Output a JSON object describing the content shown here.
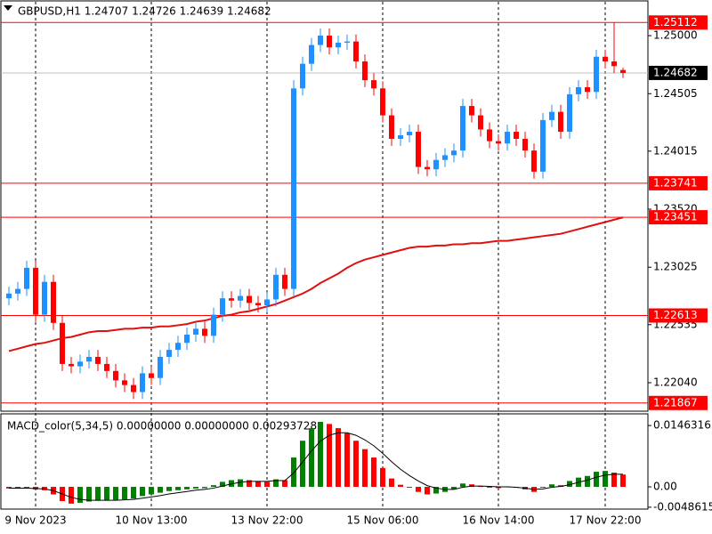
{
  "chart_data": [
    {
      "type": "candlestick",
      "title": "GBPUSD,H1  1.24707 1.24726 1.24639 1.24682",
      "categories": [
        null,
        null,
        null,
        "9 Nov 2023",
        null,
        null,
        null,
        null,
        null,
        null,
        null,
        null,
        null,
        null,
        null,
        null,
        "10 Nov 13:00",
        null,
        null,
        null,
        null,
        null,
        null,
        null,
        null,
        null,
        null,
        null,
        null,
        "13 Nov 22:00",
        null,
        null,
        null,
        null,
        null,
        null,
        null,
        null,
        null,
        null,
        null,
        null,
        "15 Nov 06:00",
        null,
        null,
        null,
        null,
        null,
        null,
        null,
        null,
        null,
        null,
        null,
        null,
        "16 Nov 14:00",
        null,
        null,
        null,
        null,
        null,
        null,
        null,
        null,
        null,
        null,
        null,
        "17 Nov 22:00",
        null,
        null
      ],
      "open": [
        1.2276,
        1.228,
        1.2284,
        1.2302,
        1.2262,
        1.229,
        1.2255,
        1.222,
        1.2218,
        1.2222,
        1.2226,
        1.222,
        1.2214,
        1.2206,
        1.2202,
        1.2196,
        1.2212,
        1.2208,
        1.2226,
        1.2232,
        1.2238,
        1.2245,
        1.225,
        1.2244,
        1.2262,
        1.2276,
        1.2274,
        1.2278,
        1.2272,
        1.227,
        1.2275,
        1.2296,
        1.2284,
        1.2455,
        1.2476,
        1.2492,
        1.25,
        1.249,
        1.2494,
        1.2495,
        1.2478,
        1.2462,
        1.2455,
        1.2432,
        1.2412,
        1.2415,
        1.2418,
        1.2388,
        1.2386,
        1.2394,
        1.2398,
        1.2402,
        1.244,
        1.2432,
        1.242,
        1.241,
        1.2408,
        1.2418,
        1.2412,
        1.2402,
        1.2384,
        1.2428,
        1.2435,
        1.2418,
        1.245,
        1.2456,
        1.2452,
        1.2482,
        1.2478,
        1.24707
      ],
      "high": [
        1.2286,
        1.229,
        1.2308,
        1.2308,
        1.2296,
        1.2296,
        1.2261,
        1.2226,
        1.2228,
        1.2232,
        1.2232,
        1.2226,
        1.222,
        1.2212,
        1.2208,
        1.2218,
        1.2218,
        1.2232,
        1.2238,
        1.2244,
        1.2251,
        1.2256,
        1.2256,
        1.2268,
        1.2282,
        1.2282,
        1.2284,
        1.2284,
        1.2278,
        1.2281,
        1.2302,
        1.2302,
        1.2462,
        1.2482,
        1.2498,
        1.2506,
        1.2506,
        1.25,
        1.2501,
        1.2501,
        1.2484,
        1.2468,
        1.2461,
        1.2438,
        1.2421,
        1.2424,
        1.2424,
        1.2394,
        1.24,
        1.2404,
        1.2408,
        1.2446,
        1.2446,
        1.2438,
        1.2426,
        1.2416,
        1.2424,
        1.2424,
        1.2418,
        1.2408,
        1.2434,
        1.2441,
        1.2441,
        1.2456,
        1.2462,
        1.2462,
        1.2488,
        1.2488,
        1.2511,
        1.24726
      ],
      "low": [
        1.227,
        1.2274,
        1.2278,
        1.2256,
        1.2256,
        1.2249,
        1.2214,
        1.2212,
        1.2212,
        1.2216,
        1.2214,
        1.2208,
        1.22,
        1.2196,
        1.219,
        1.219,
        1.2202,
        1.2202,
        1.222,
        1.2226,
        1.2232,
        1.2239,
        1.2238,
        1.2238,
        1.2256,
        1.2268,
        1.2268,
        1.2266,
        1.2264,
        1.2264,
        1.2269,
        1.2278,
        1.2278,
        1.2449,
        1.247,
        1.2486,
        1.2484,
        1.2484,
        1.2488,
        1.2472,
        1.2456,
        1.2449,
        1.2426,
        1.2406,
        1.2406,
        1.2409,
        1.2382,
        1.238,
        1.238,
        1.2388,
        1.2392,
        1.2396,
        1.2426,
        1.2414,
        1.2404,
        1.2402,
        1.2402,
        1.2406,
        1.2396,
        1.2378,
        1.2378,
        1.2422,
        1.2412,
        1.2412,
        1.2444,
        1.2446,
        1.2446,
        1.2472,
        1.2468,
        1.24639
      ],
      "close": [
        1.228,
        1.2284,
        1.2302,
        1.2262,
        1.229,
        1.2255,
        1.222,
        1.2218,
        1.2222,
        1.2226,
        1.222,
        1.2214,
        1.2206,
        1.2202,
        1.2196,
        1.2212,
        1.2208,
        1.2226,
        1.2232,
        1.2238,
        1.2245,
        1.225,
        1.2244,
        1.2262,
        1.2276,
        1.2274,
        1.2278,
        1.2272,
        1.227,
        1.2275,
        1.2296,
        1.2284,
        1.2455,
        1.2476,
        1.2492,
        1.25,
        1.249,
        1.2494,
        1.2495,
        1.2478,
        1.2462,
        1.2455,
        1.2432,
        1.2412,
        1.2415,
        1.2418,
        1.2388,
        1.2386,
        1.2394,
        1.2398,
        1.2402,
        1.244,
        1.2432,
        1.242,
        1.241,
        1.2408,
        1.2418,
        1.2412,
        1.2402,
        1.2384,
        1.2428,
        1.2435,
        1.2418,
        1.245,
        1.2456,
        1.2452,
        1.2482,
        1.2478,
        1.2474,
        1.24682
      ],
      "bull_color": "#1e90ff",
      "bear_color": "#ff0000",
      "overlay": {
        "color": "#e01010",
        "values": [
          1.2231,
          1.2233,
          1.2235,
          1.2237,
          1.2238,
          1.224,
          1.2242,
          1.2243,
          1.2245,
          1.2247,
          1.2248,
          1.2248,
          1.2249,
          1.225,
          1.225,
          1.2251,
          1.2251,
          1.2252,
          1.2252,
          1.2253,
          1.2254,
          1.2256,
          1.2257,
          1.2259,
          1.2261,
          1.2262,
          1.2264,
          1.2265,
          1.2267,
          1.2269,
          1.2271,
          1.2274,
          1.2277,
          1.228,
          1.2284,
          1.2289,
          1.2293,
          1.2297,
          1.2302,
          1.2306,
          1.2309,
          1.2311,
          1.2313,
          1.2315,
          1.2317,
          1.2319,
          1.232,
          1.232,
          1.2321,
          1.2321,
          1.2322,
          1.2322,
          1.2323,
          1.2323,
          1.2324,
          1.2325,
          1.2325,
          1.2326,
          1.2327,
          1.2328,
          1.2329,
          1.233,
          1.2331,
          1.2333,
          1.2335,
          1.2337,
          1.2339,
          1.2341,
          1.2343,
          1.2345
        ]
      },
      "ylim": [
        1.21797,
        1.25304
      ],
      "yticks": [
        {
          "value": 1.25,
          "label": "1.25000"
        },
        {
          "value": 1.24505,
          "label": "1.24505"
        },
        {
          "value": 1.24015,
          "label": "1.24015"
        },
        {
          "value": 1.2352,
          "label": "1.23520"
        },
        {
          "value": 1.23025,
          "label": "1.23025"
        },
        {
          "value": 1.22535,
          "label": "1.22535"
        },
        {
          "value": 1.2204,
          "label": "1.22040"
        }
      ],
      "hlines": [
        {
          "value": 1.25112,
          "label": "1.25112"
        },
        {
          "value": 1.23741,
          "label": "1.23741"
        },
        {
          "value": 1.23451,
          "label": "1.23451"
        },
        {
          "value": 1.22613,
          "label": "1.22613"
        },
        {
          "value": 1.21867,
          "label": "1.21867"
        }
      ],
      "hline_color": "#ff0000",
      "last_price": {
        "value": 1.24682,
        "label": "1.24682"
      },
      "grid": true
    },
    {
      "type": "macd",
      "title": "MACD_color(5,34,5) 0.00000000 0.00000000 0.00293728",
      "values": [
        -0.0004,
        -0.0003,
        -0.0001,
        -0.0006,
        -0.0008,
        -0.0018,
        -0.0034,
        -0.004,
        -0.0038,
        -0.0035,
        -0.0033,
        -0.0032,
        -0.0031,
        -0.003,
        -0.0028,
        -0.0022,
        -0.0018,
        -0.0014,
        -0.001,
        -0.0008,
        -0.0006,
        -0.0004,
        -0.0003,
        0.0004,
        0.0012,
        0.0016,
        0.0018,
        0.0016,
        0.0013,
        0.0012,
        0.0018,
        0.0016,
        0.007,
        0.011,
        0.014,
        0.0155,
        0.015,
        0.014,
        0.0128,
        0.011,
        0.009,
        0.007,
        0.0045,
        0.002,
        0.0005,
        -0.0002,
        -0.0012,
        -0.0018,
        -0.0016,
        -0.0012,
        -0.0006,
        0.0008,
        0.0006,
        0.0002,
        -0.0002,
        -0.0003,
        0.0001,
        -0.0002,
        -0.0006,
        -0.0012,
        -0.0002,
        0.0006,
        0.0004,
        0.0014,
        0.0022,
        0.0026,
        0.0036,
        0.0038,
        0.0034,
        0.00293728
      ],
      "signal": [
        -0.0003,
        -0.0003,
        -0.0003,
        -0.0004,
        -0.0005,
        -0.0009,
        -0.0017,
        -0.0025,
        -0.003,
        -0.0032,
        -0.0032,
        -0.0032,
        -0.0032,
        -0.0031,
        -0.003,
        -0.0027,
        -0.0024,
        -0.0021,
        -0.0017,
        -0.0014,
        -0.0011,
        -0.0008,
        -0.0006,
        -0.0003,
        0.0002,
        0.0007,
        0.0011,
        0.0013,
        0.0013,
        0.0013,
        0.0015,
        0.0015,
        0.0033,
        0.0059,
        0.0086,
        0.0109,
        0.0123,
        0.0129,
        0.0129,
        0.0123,
        0.0112,
        0.0098,
        0.008,
        0.006,
        0.0042,
        0.0027,
        0.0014,
        0.0003,
        -0.0003,
        -0.0006,
        -0.0006,
        -0.0001,
        0.0002,
        0.0002,
        0.0001,
        0.0,
        0.0,
        -0.0001,
        -0.0003,
        -0.0006,
        -0.0005,
        -0.0001,
        0.0001,
        0.0005,
        0.0011,
        0.0016,
        0.0023,
        0.0028,
        0.003,
        0.003
      ],
      "up_color": "#008000",
      "down_color": "#ff0000",
      "signal_color": "#000000",
      "ylim": [
        -0.0053,
        0.0172
      ],
      "yticks": [
        0.0146316,
        {
          "value": 0,
          "label": "0.00"
        },
        -0.0048615
      ]
    }
  ]
}
